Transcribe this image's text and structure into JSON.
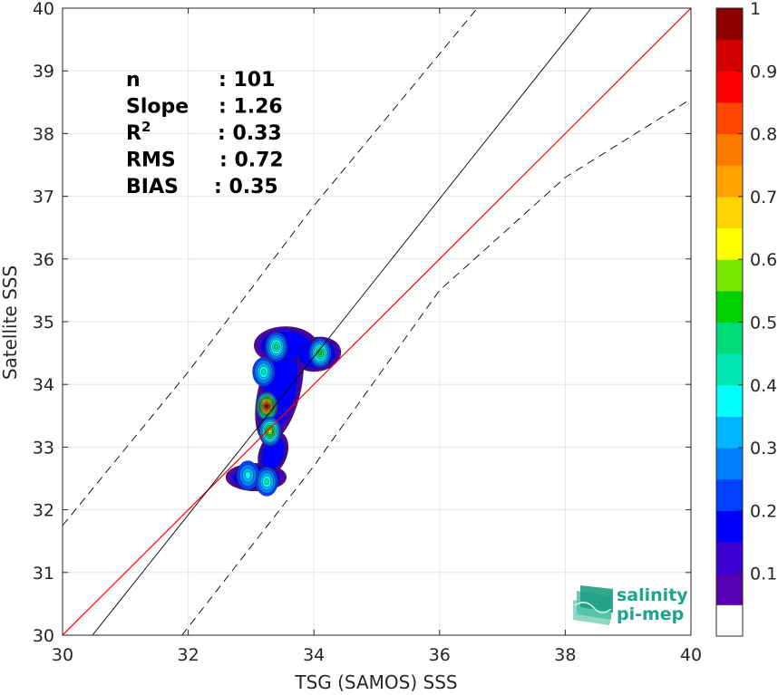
{
  "chart_data": {
    "type": "heatmap",
    "xlabel": "TSG (SAMOS) SSS",
    "ylabel": "Satellite SSS",
    "xlim": [
      30,
      40
    ],
    "ylim": [
      30,
      40
    ],
    "xticks": [
      "30",
      "32",
      "34",
      "36",
      "38",
      "40"
    ],
    "yticks": [
      "30",
      "31",
      "32",
      "33",
      "34",
      "35",
      "36",
      "37",
      "38",
      "39",
      "40"
    ],
    "grid": true,
    "stats": [
      {
        "label": "n",
        "value": ": 101"
      },
      {
        "label": "Slope",
        "value": ": 1.26"
      },
      {
        "label": "R",
        "superscript": "2",
        "value": ": 0.33"
      },
      {
        "label": "RMS",
        "value": ": 0.72"
      },
      {
        "label": "BIAS",
        "value": ": 0.35"
      }
    ],
    "reference_lines": [
      {
        "style": "identity",
        "color": "#ff0000",
        "slope": 1,
        "intercept": 0
      },
      {
        "style": "regression",
        "color": "#000000",
        "slope": 1.26,
        "intercept": -8.4
      },
      {
        "style": "dashed-upper",
        "color": "#000000",
        "points": [
          [
            30,
            31.75
          ],
          [
            32,
            34.2
          ],
          [
            34,
            36.85
          ],
          [
            36.6,
            40
          ]
        ]
      },
      {
        "style": "dashed-lower",
        "color": "#000000",
        "points": [
          [
            31.9,
            30
          ],
          [
            34,
            32.7
          ],
          [
            36,
            35.5
          ],
          [
            38,
            37.3
          ],
          [
            40,
            38.55
          ]
        ]
      }
    ],
    "density_peaks": [
      {
        "x": 33.25,
        "y": 33.65,
        "level": 1.0
      },
      {
        "x": 33.3,
        "y": 33.25,
        "level": 0.6
      },
      {
        "x": 33.2,
        "y": 34.2,
        "level": 0.4
      },
      {
        "x": 33.4,
        "y": 34.6,
        "level": 0.45
      },
      {
        "x": 34.1,
        "y": 34.5,
        "level": 0.5
      },
      {
        "x": 32.95,
        "y": 32.55,
        "level": 0.35
      },
      {
        "x": 33.25,
        "y": 32.45,
        "level": 0.4
      }
    ],
    "colorbar": {
      "range": [
        0,
        1
      ],
      "ticks": [
        "0.1",
        "0.2",
        "0.3",
        "0.4",
        "0.5",
        "0.6",
        "0.7",
        "0.8",
        "0.9",
        "1"
      ],
      "colors": [
        "#5a00b4",
        "#3c00d2",
        "#0000ff",
        "#0040ff",
        "#0080ff",
        "#00b4ff",
        "#00ffff",
        "#00e6b4",
        "#00dc78",
        "#00d200",
        "#78e600",
        "#ffff00",
        "#ffd200",
        "#ffa000",
        "#ff7800",
        "#ff4600",
        "#ff0000",
        "#d20000",
        "#8c0000"
      ]
    }
  },
  "logo": {
    "line1": "salinity",
    "line2": "pi-mep"
  }
}
